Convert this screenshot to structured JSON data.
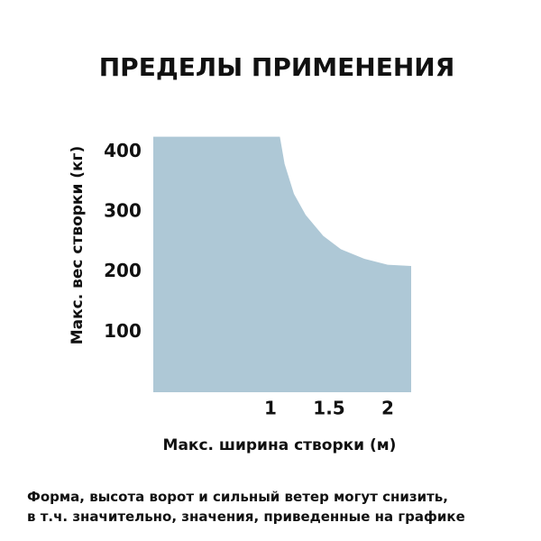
{
  "chart_data": {
    "type": "area",
    "title": "ПРЕДЕЛЫ ПРИМЕНЕНИЯ",
    "x_label": "Макс. ширина створки (м)",
    "y_label": "Макс. вес створки (кг)",
    "x": [
      0,
      1.08,
      1.12,
      1.2,
      1.3,
      1.45,
      1.6,
      1.8,
      2.0,
      2.2
    ],
    "values": [
      425,
      425,
      380,
      330,
      295,
      260,
      238,
      222,
      212,
      210
    ],
    "color": "#aec8d6",
    "xlim": [
      0,
      2.3
    ],
    "ylim": [
      0,
      450
    ],
    "xticks": [
      1,
      1.5,
      2
    ],
    "yticks": [
      100,
      200,
      300,
      400
    ],
    "notes": [
      "Форма, высота ворот и сильный ветер могут снизить,",
      "в т.ч. значительно, значения, приведенные на графике"
    ]
  }
}
